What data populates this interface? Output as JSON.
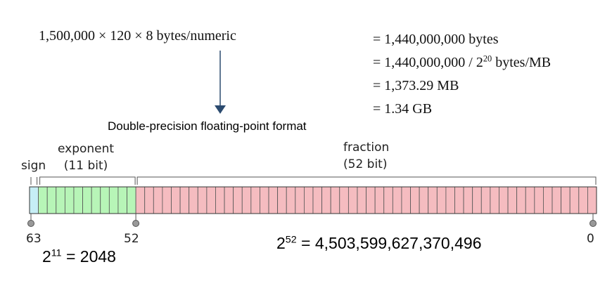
{
  "calculation": {
    "formula": "1,500,000 × 120 × 8 bytes/numeric",
    "results": [
      {
        "text": "= 1,440,000,000 bytes"
      },
      {
        "pre": "= 1,440,000,000 / 2",
        "exp": "20",
        "post": " bytes/MB"
      },
      {
        "text": "= 1,373.29 MB"
      },
      {
        "text": "= 1.34 GB"
      }
    ]
  },
  "format": {
    "title": "Double-precision floating-point format",
    "fields": {
      "sign": {
        "label": "sign",
        "bits": 1,
        "color": "#c6eef5"
      },
      "exponent": {
        "label": "exponent",
        "bits_label": "(11 bit)",
        "bits": 11,
        "color": "#b7f5b7"
      },
      "fraction": {
        "label": "fraction",
        "bits_label": "(52 bit)",
        "bits": 52,
        "color": "#f5bcc0"
      }
    },
    "tick_labels": {
      "high": "63",
      "mid": "52",
      "low": "0"
    }
  },
  "values": {
    "exponent": {
      "base": "2",
      "exp": "11",
      "rest": " = 2048"
    },
    "fraction": {
      "base": "2",
      "exp": "52",
      "rest": " = 4,503,599,627,370,496"
    }
  },
  "colors": {
    "arrow": "#2b4a6f",
    "cell_border": "#555555",
    "bracket": "#555555"
  }
}
